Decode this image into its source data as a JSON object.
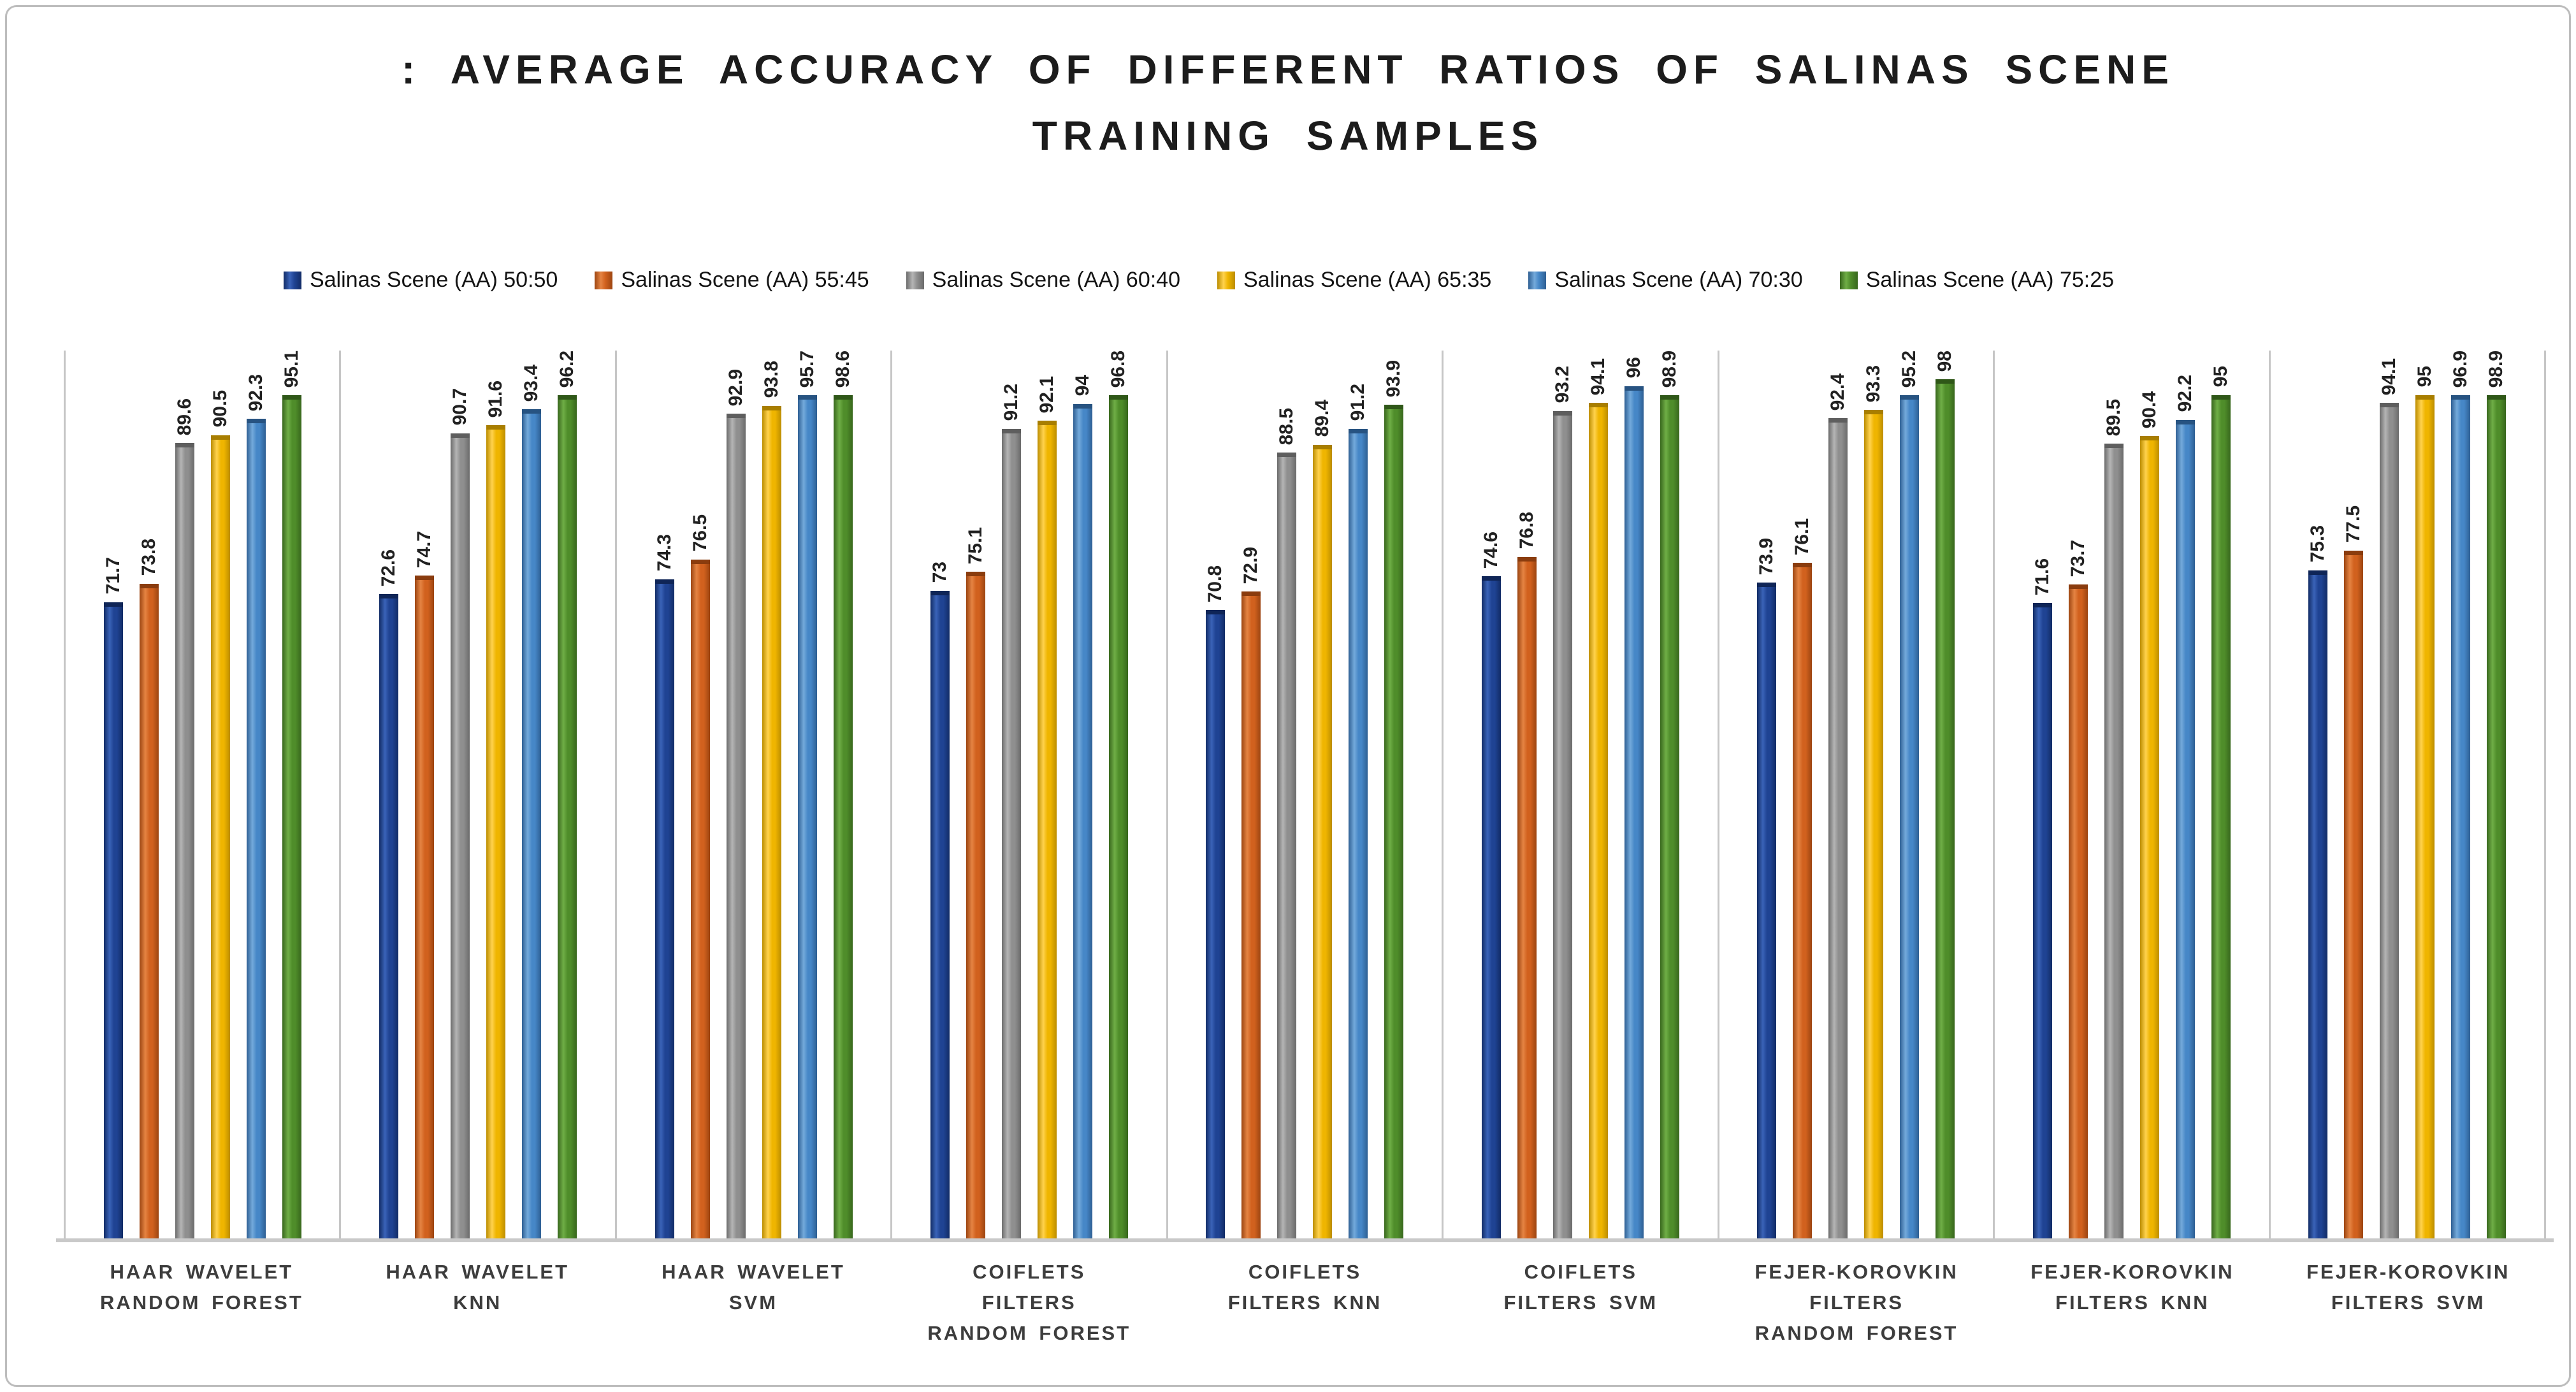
{
  "figure": {
    "background": "#ffffff",
    "frame_color": "#bdbdbd",
    "separator_color": "#c6c6c6",
    "baseline_color": "#c9c9c9"
  },
  "title": {
    "line1": ": AVERAGE ACCURACY OF DIFFERENT RATIOS OF SALINAS SCENE",
    "line2": "TRAINING SAMPLES"
  },
  "chart_data": {
    "type": "bar",
    "title": ": AVERAGE ACCURACY OF DIFFERENT RATIOS OF SALINAS SCENE TRAINING SAMPLES",
    "ylim": [
      0,
      100
    ],
    "grid": "vertical category separators only",
    "legend_position": "top",
    "data_labels": "rotated 90 degrees above each bar",
    "categories": [
      "HAAR WAVELET\nRANDOM FOREST",
      "HAAR WAVELET\nKNN",
      "HAAR WAVELET\nSVM",
      "COIFLETS\nFILTERS\nRANDOM FOREST",
      "COIFLETS\nFILTERS KNN",
      "COIFLETS\nFILTERS SVM",
      "FEJER-KOROVKIN\nFILTERS\nRANDOM FOREST",
      "FEJER-KOROVKIN\nFILTERS KNN",
      "FEJER-KOROVKIN\nFILTERS SVM"
    ],
    "series": [
      {
        "name": "Salinas Scene (AA) 50:50",
        "color": "#1f4393",
        "color_dark": "#122c66",
        "color_light": "#3a63b8",
        "color_cap": "#0f2557",
        "values": [
          71.7,
          72.6,
          74.3,
          73,
          70.8,
          74.6,
          73.9,
          71.6,
          75.3
        ]
      },
      {
        "name": "Salinas Scene (AA) 55:45",
        "color": "#d1611e",
        "color_dark": "#9c4511",
        "color_light": "#e58443",
        "color_cap": "#8a3c0e",
        "values": [
          73.8,
          74.7,
          76.5,
          75.1,
          72.9,
          76.8,
          76.1,
          73.7,
          77.5
        ]
      },
      {
        "name": "Salinas Scene (AA) 60:40",
        "color": "#8f8f8f",
        "color_dark": "#6b6b6b",
        "color_light": "#b5b5b5",
        "color_cap": "#5e5e5e",
        "values": [
          89.6,
          90.7,
          92.9,
          91.2,
          88.5,
          93.2,
          92.4,
          89.5,
          94.1
        ]
      },
      {
        "name": "Salinas Scene (AA) 65:35",
        "color": "#efb500",
        "color_dark": "#bc8d00",
        "color_light": "#ffd24d",
        "color_cap": "#a87e00",
        "values": [
          90.5,
          91.6,
          93.8,
          92.1,
          89.4,
          94.1,
          93.3,
          90.4,
          95
        ]
      },
      {
        "name": "Salinas Scene (AA) 70:30",
        "color": "#4687c7",
        "color_dark": "#2e5f93",
        "color_light": "#74aadb",
        "color_cap": "#275381",
        "values": [
          92.3,
          93.4,
          95.7,
          94,
          91.2,
          96,
          95.2,
          92.2,
          96.9
        ]
      },
      {
        "name": "Salinas Scene (AA) 75:25",
        "color": "#4f8d2a",
        "color_dark": "#38671d",
        "color_light": "#6fae46",
        "color_cap": "#2f5718",
        "values": [
          95.1,
          96.2,
          98.6,
          96.8,
          93.9,
          98.9,
          98,
          95,
          98.9
        ]
      }
    ]
  }
}
